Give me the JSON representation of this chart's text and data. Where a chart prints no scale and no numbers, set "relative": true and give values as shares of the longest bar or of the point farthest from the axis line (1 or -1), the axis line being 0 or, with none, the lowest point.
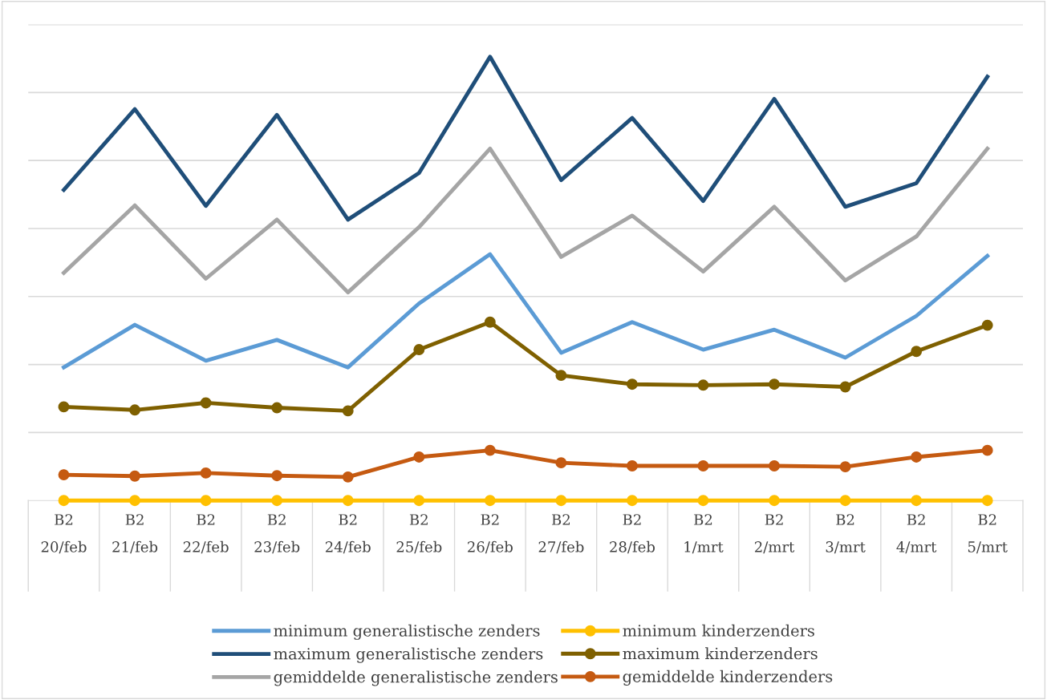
{
  "chart_data": {
    "type": "line",
    "relative": true,
    "grid": "y",
    "legend": "bottom",
    "marker": "none",
    "categories": [
      "B2\n20/feb",
      "B2\n21/feb",
      "B2\n22/feb",
      "B2\n23/feb",
      "B2\n24/feb",
      "B2\n25/feb",
      "B2\n26/feb",
      "B2\n27/feb",
      "B2\n28/feb",
      "B2\n1/mrt",
      "B2\n2/mrt",
      "B2\n3/mrt",
      "B2\n4/mrt",
      "B2\n5/mrt"
    ],
    "series": [
      {
        "name": "minimum generalistische zenders",
        "color": "#5b9bd5",
        "values": [
          0.3,
          0.396,
          0.315,
          0.362,
          0.3,
          0.444,
          0.555,
          0.333,
          0.402,
          0.34,
          0.385,
          0.322,
          0.416,
          0.551
        ]
      },
      {
        "name": "maximum generalistische zenders",
        "color": "#1f4e79",
        "values": [
          0.7,
          0.882,
          0.664,
          0.869,
          0.633,
          0.738,
          1.0,
          0.722,
          0.862,
          0.675,
          0.905,
          0.662,
          0.715,
          0.955
        ]
      },
      {
        "name": "gemiddelde generalistische zenders",
        "color": "#a5a5a5",
        "values": [
          0.513,
          0.665,
          0.5,
          0.633,
          0.469,
          0.616,
          0.793,
          0.549,
          0.642,
          0.516,
          0.662,
          0.496,
          0.595,
          0.793
        ]
      },
      {
        "name": "minimum kinderzenders",
        "color": "#ffc000",
        "marker": "circle",
        "values": [
          0,
          0,
          0,
          0,
          0,
          0,
          0,
          0,
          0,
          0,
          0,
          0,
          0,
          0
        ]
      },
      {
        "name": "maximum kinderzenders",
        "color": "#7f6000",
        "marker": "circle",
        "values": [
          0.211,
          0.204,
          0.22,
          0.209,
          0.202,
          0.34,
          0.402,
          0.282,
          0.262,
          0.26,
          0.262,
          0.256,
          0.336,
          0.395
        ]
      },
      {
        "name": "gemiddelde kinderzenders",
        "color": "#c55a11",
        "marker": "circle",
        "values": [
          0.058,
          0.055,
          0.062,
          0.056,
          0.053,
          0.098,
          0.113,
          0.085,
          0.078,
          0.078,
          0.078,
          0.076,
          0.098,
          0.113
        ]
      }
    ]
  }
}
